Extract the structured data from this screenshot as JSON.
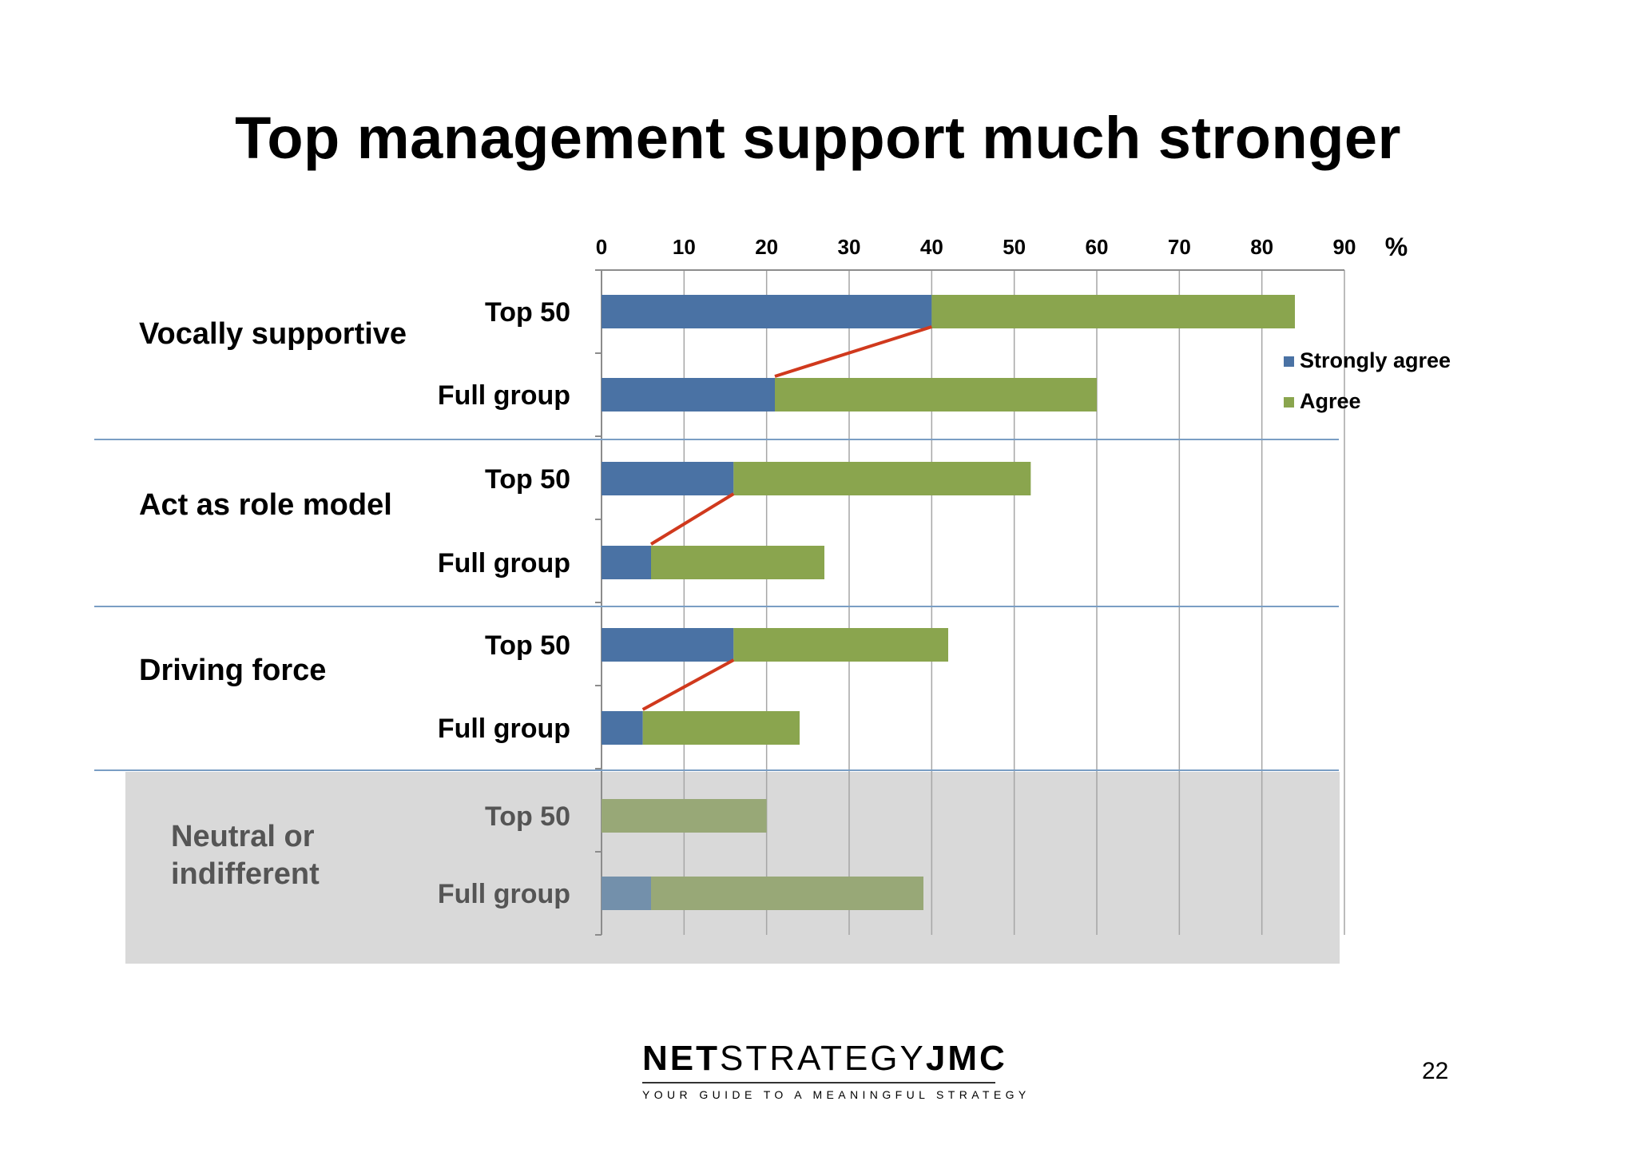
{
  "slide": {
    "title": "Top management support much stronger",
    "page_number": "22"
  },
  "logo": {
    "name_bold_1": "NET",
    "name_light": "STRATEGY",
    "name_bold_2": "JMC",
    "tagline": "YOUR GUIDE TO A MEANINGFUL STRATEGY"
  },
  "colors": {
    "strongly_agree": "#4a72a4",
    "agree": "#8aa54e",
    "strongly_agree_muted": "#7390ab",
    "agree_muted": "#98a877",
    "connector": "#d0391d",
    "shade": "#d9d9d9",
    "divider": "#7a9ec4"
  },
  "chart_data": {
    "type": "bar",
    "orientation": "horizontal",
    "stacked": true,
    "xlim": [
      0,
      90
    ],
    "xticks": [
      "0",
      "10",
      "20",
      "30",
      "40",
      "50",
      "60",
      "70",
      "80",
      "90"
    ],
    "unit_label": "%",
    "axis_position": "top",
    "grid": true,
    "legend_position": "right",
    "series": [
      {
        "name": "Strongly agree",
        "color_key": "strongly_agree"
      },
      {
        "name": "Agree",
        "color_key": "agree"
      }
    ],
    "groups": [
      {
        "label": "Vocally supportive",
        "shaded": false,
        "bars": [
          {
            "label": "Top 50",
            "strongly_agree": 40,
            "agree": 44
          },
          {
            "label": "Full group",
            "strongly_agree": 21,
            "agree": 39
          }
        ]
      },
      {
        "label": "Act as role model",
        "shaded": false,
        "bars": [
          {
            "label": "Top 50",
            "strongly_agree": 16,
            "agree": 36
          },
          {
            "label": "Full group",
            "strongly_agree": 6,
            "agree": 21
          }
        ]
      },
      {
        "label": "Driving force",
        "shaded": false,
        "bars": [
          {
            "label": "Top 50",
            "strongly_agree": 16,
            "agree": 26
          },
          {
            "label": "Full group",
            "strongly_agree": 5,
            "agree": 19
          }
        ]
      },
      {
        "label": "Neutral or indifferent",
        "shaded": true,
        "bars": [
          {
            "label": "Top 50",
            "strongly_agree": 0,
            "agree": 20
          },
          {
            "label": "Full group",
            "strongly_agree": 6,
            "agree": 33
          }
        ]
      }
    ]
  }
}
